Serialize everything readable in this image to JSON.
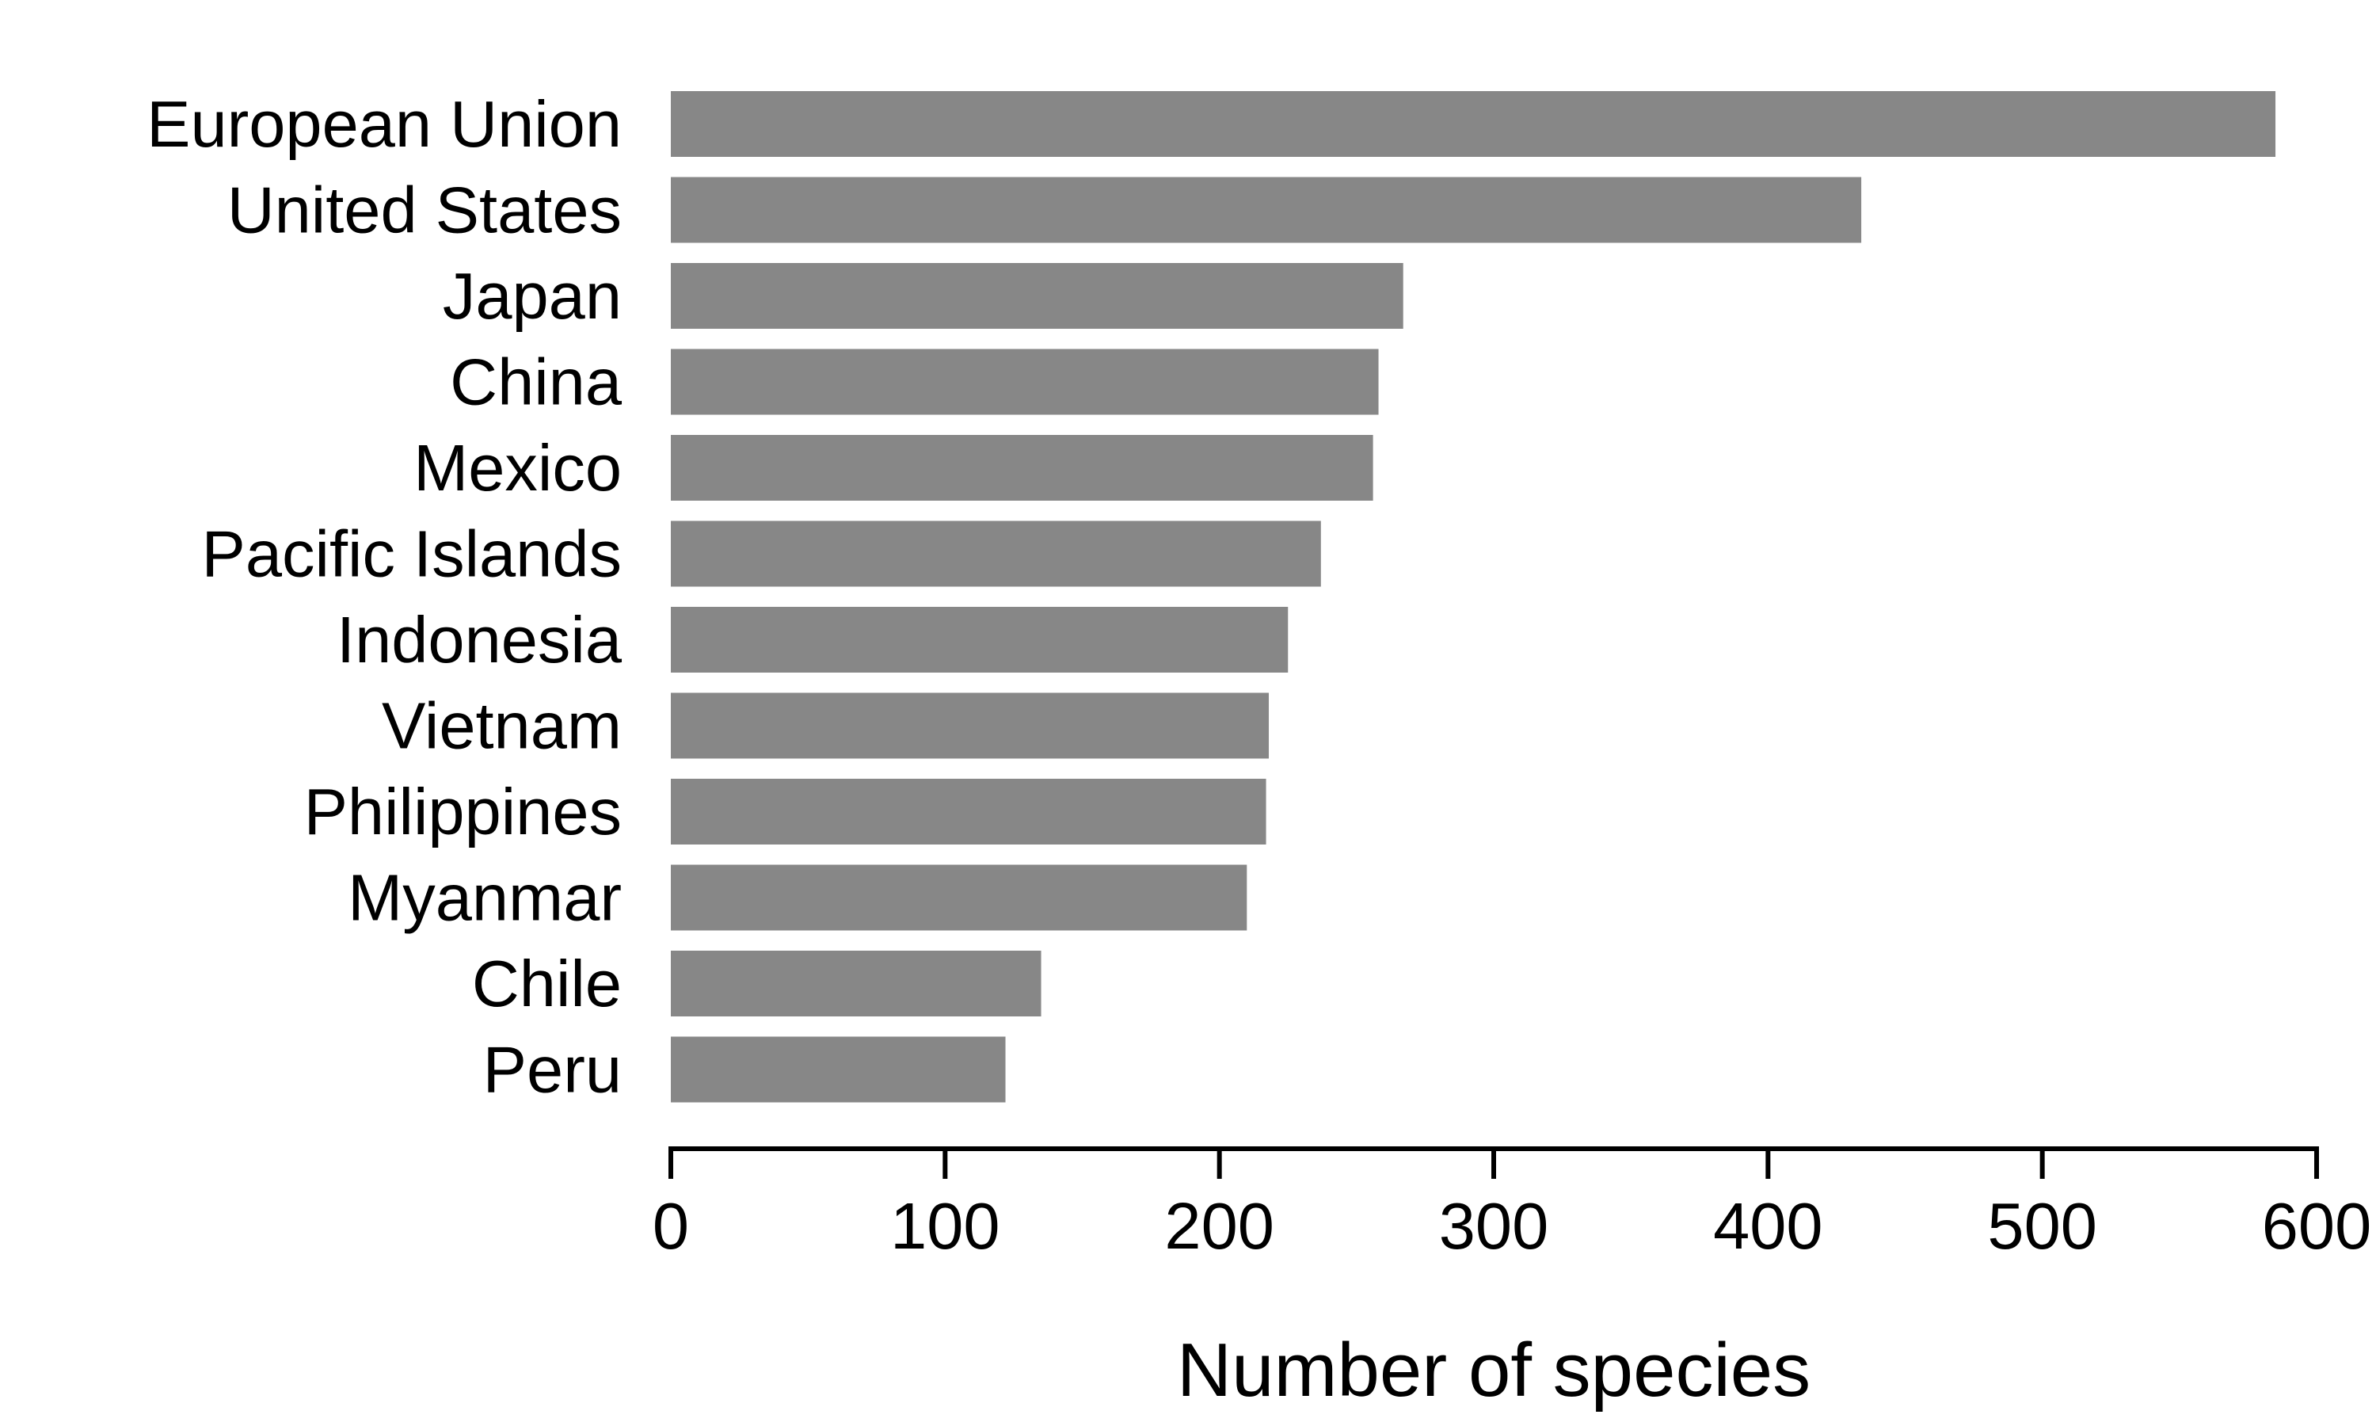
{
  "chart_data": {
    "type": "bar",
    "orientation": "horizontal",
    "categories": [
      "European Union",
      "United States",
      "Japan",
      "China",
      "Mexico",
      "Pacific Islands",
      "Indonesia",
      "Vietnam",
      "Philippines",
      "Myanmar",
      "Chile",
      "Peru"
    ],
    "values": [
      585,
      434,
      267,
      258,
      256,
      237,
      225,
      218,
      217,
      210,
      135,
      122
    ],
    "title": "",
    "xlabel": "Number of species",
    "ylabel": "",
    "xlim": [
      0,
      600
    ],
    "xticks": [
      "0",
      "100",
      "200",
      "300",
      "400",
      "500",
      "600"
    ],
    "grid": false,
    "legend": "none",
    "colors": {
      "bar": "#878787",
      "axis": "#000000",
      "text": "#000000",
      "background": "#ffffff"
    }
  }
}
